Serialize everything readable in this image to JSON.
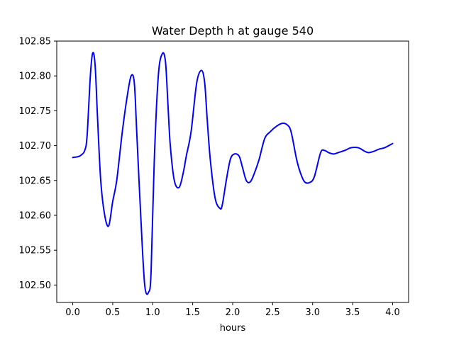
{
  "chart_data": {
    "type": "line",
    "title": "Water Depth h at gauge 540",
    "xlabel": "hours",
    "ylabel": "",
    "xlim": [
      -0.2,
      4.2
    ],
    "ylim": [
      102.475,
      102.85
    ],
    "xticks": [
      0.0,
      0.5,
      1.0,
      1.5,
      2.0,
      2.5,
      3.0,
      3.5,
      4.0
    ],
    "xtick_labels": [
      "0.0",
      "0.5",
      "1.0",
      "1.5",
      "2.0",
      "2.5",
      "3.0",
      "3.5",
      "4.0"
    ],
    "yticks": [
      102.5,
      102.55,
      102.6,
      102.65,
      102.7,
      102.75,
      102.8,
      102.85
    ],
    "ytick_labels": [
      "102.50",
      "102.55",
      "102.60",
      "102.65",
      "102.70",
      "102.75",
      "102.80",
      "102.85"
    ],
    "grid": false,
    "series": [
      {
        "color": "#0000ff",
        "x": [
          0.0,
          0.06,
          0.1,
          0.15,
          0.18,
          0.22,
          0.25,
          0.28,
          0.31,
          0.35,
          0.4,
          0.45,
          0.5,
          0.55,
          0.62,
          0.68,
          0.73,
          0.77,
          0.8,
          0.85,
          0.9,
          0.95,
          0.98,
          1.02,
          1.07,
          1.12,
          1.16,
          1.19,
          1.22,
          1.27,
          1.33,
          1.38,
          1.42,
          1.48,
          1.55,
          1.61,
          1.65,
          1.68,
          1.72,
          1.78,
          1.84,
          1.87,
          1.92,
          1.97,
          2.02,
          2.08,
          2.12,
          2.17,
          2.22,
          2.27,
          2.33,
          2.4,
          2.47,
          2.55,
          2.62,
          2.68,
          2.73,
          2.8,
          2.85,
          2.9,
          2.96,
          3.02,
          3.1,
          3.15,
          3.2,
          3.26,
          3.32,
          3.4,
          3.48,
          3.57,
          3.65,
          3.7,
          3.77,
          3.83,
          3.9,
          4.0
        ],
        "y": [
          102.683,
          102.684,
          102.686,
          102.693,
          102.715,
          102.8,
          102.833,
          102.815,
          102.74,
          102.65,
          102.6,
          102.585,
          102.62,
          102.65,
          102.72,
          102.77,
          102.8,
          102.79,
          102.72,
          102.6,
          102.5,
          102.49,
          102.52,
          102.68,
          102.8,
          102.832,
          102.82,
          102.76,
          102.7,
          102.65,
          102.64,
          102.66,
          102.685,
          102.72,
          102.79,
          102.808,
          102.79,
          102.74,
          102.68,
          102.625,
          102.61,
          102.615,
          102.65,
          102.68,
          102.688,
          102.685,
          102.67,
          102.65,
          102.648,
          102.66,
          102.68,
          102.71,
          102.72,
          102.728,
          102.732,
          102.73,
          102.72,
          102.68,
          102.66,
          102.648,
          102.647,
          102.655,
          102.69,
          102.693,
          102.69,
          102.688,
          102.69,
          102.693,
          102.697,
          102.697,
          102.692,
          102.69,
          102.692,
          102.695,
          102.697,
          102.703
        ]
      }
    ]
  }
}
